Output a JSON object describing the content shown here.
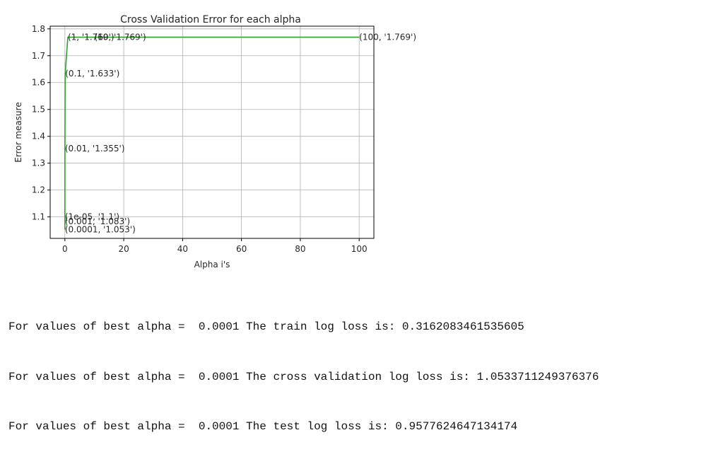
{
  "chart_data": {
    "type": "line",
    "title": "Cross Validation Error for each alpha",
    "xlabel": "Alpha i's",
    "ylabel": "Error measure",
    "xlim": [
      -5,
      105
    ],
    "ylim": [
      1.02,
      1.81
    ],
    "xticks": [
      0,
      20,
      40,
      60,
      80,
      100
    ],
    "yticks": [
      1.1,
      1.2,
      1.3,
      1.4,
      1.5,
      1.6,
      1.7,
      1.8
    ],
    "grid": true,
    "series": [
      {
        "color": "#2ca02c",
        "x": [
          1e-05,
          0.0001,
          0.001,
          0.01,
          0.1,
          1,
          10,
          100
        ],
        "y": [
          1.1,
          1.053,
          1.083,
          1.355,
          1.633,
          1.769,
          1.769,
          1.769
        ]
      }
    ],
    "annotations": [
      {
        "text": "(1e-05, '1.1')",
        "x": 1e-05,
        "y": 1.1
      },
      {
        "text": "(0.0001, '1.053')",
        "x": 0.0001,
        "y": 1.053
      },
      {
        "text": "(0.001, '1.083')",
        "x": 0.001,
        "y": 1.083
      },
      {
        "text": "(0.01, '1.355')",
        "x": 0.01,
        "y": 1.355
      },
      {
        "text": "(0.1, '1.633')",
        "x": 0.1,
        "y": 1.633
      },
      {
        "text": "(1, '1.769')",
        "x": 1,
        "y": 1.769
      },
      {
        "text": "(10, '1.769')",
        "x": 10,
        "y": 1.769
      },
      {
        "text": "(100, '1.769')",
        "x": 100,
        "y": 1.769
      }
    ]
  },
  "output": {
    "lines": [
      "For values of best alpha =  0.0001 The train log loss is: 0.3162083461535605",
      "For values of best alpha =  0.0001 The cross validation log loss is: 1.0533711249376376",
      "For values of best alpha =  0.0001 The test log loss is: 0.9577624647134174"
    ]
  }
}
